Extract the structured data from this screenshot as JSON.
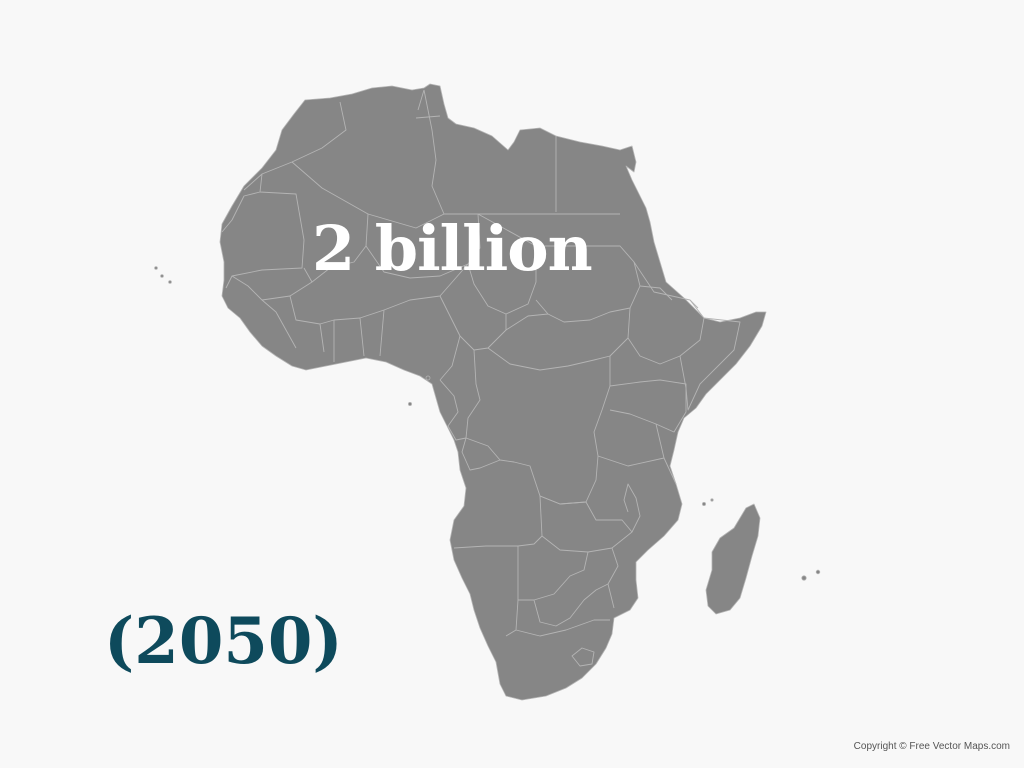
{
  "map": {
    "region": "Africa",
    "land_color": "#868686",
    "border_color": "#b4b4b4",
    "background_color": "#f8f8f8"
  },
  "stat": {
    "value": "2 billion",
    "color": "#ffffff"
  },
  "year": {
    "label": "(2050)",
    "color": "#0e4a5c"
  },
  "footer": {
    "copyright": "Copyright © Free Vector Maps.com"
  }
}
